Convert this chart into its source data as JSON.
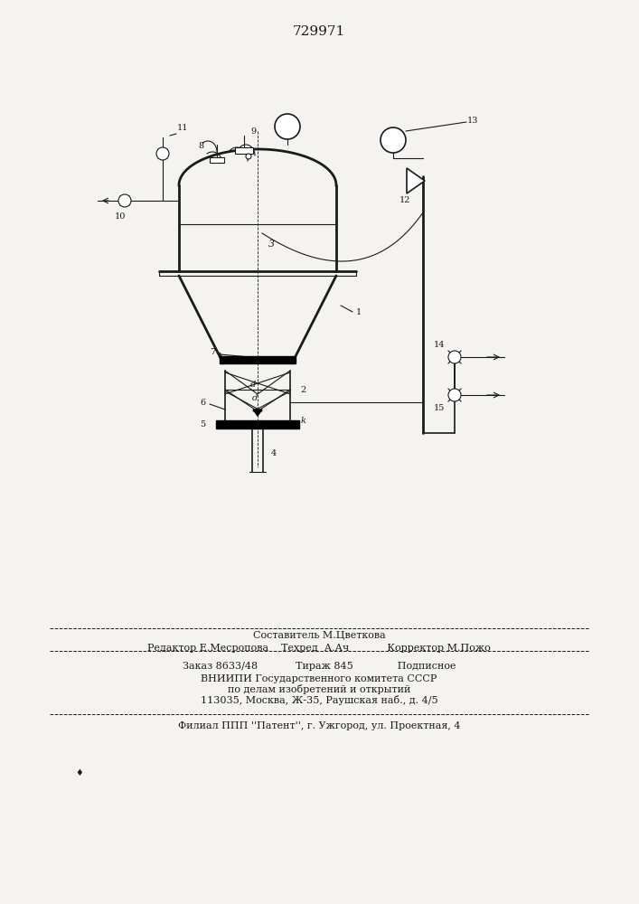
{
  "title": "729971",
  "bg_color": "#f5f3f0",
  "line_color": "#1a1a1a",
  "text_color": "#1a1a1a",
  "footer_lines": [
    "Составитель М.Цветкова",
    "Редактор Е.Месропова    Техред  А.Ач            Корректор М.Пожо",
    "Заказ 8633/48            Тираж 845              Подписное",
    "ВНИИПИ Государственного комитета СССР",
    "по делам изобретений и открытий",
    "113035, Москва, Ж-35, Раушская наб., д. 4/5",
    "Филиал ППП ''Патент'', г. Ужгород, ул. Проектная, 4"
  ]
}
